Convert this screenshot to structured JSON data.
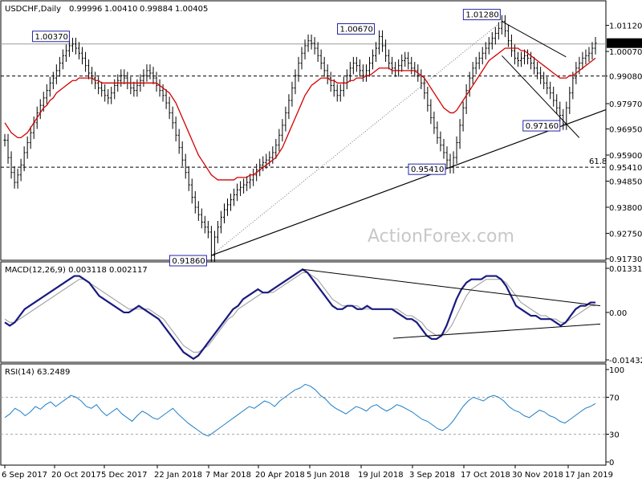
{
  "chart_data": [
    {
      "type": "candlestick",
      "title": "USDCHF,Daily",
      "ohlc_header": [
        "0.99996",
        "1.00410",
        "0.99884",
        "1.00405"
      ],
      "watermark": "ActionForex.com",
      "ylim": [
        0.9173,
        1.013
      ],
      "y_ticks": [
        "1.01120",
        "1.00070",
        "0.99080",
        "0.97970",
        "0.96950",
        "0.95900",
        "0.94850",
        "0.93800",
        "0.92750",
        "0.91730"
      ],
      "current_price": "1.00405",
      "x_ticks": [
        "6 Sep 2017",
        "20 Oct 2017",
        "5 Dec 2017",
        "22 Jan 2018",
        "7 Mar 2018",
        "20 Apr 2018",
        "5 Jun 2018",
        "19 Jul 2018",
        "3 Sep 2018",
        "17 Oct 2018",
        "30 Nov 2018",
        "17 Jan 2019"
      ],
      "annotations": [
        {
          "label": "1.00370",
          "value": 1.0037
        },
        {
          "label": "1.00670",
          "value": 1.0067
        },
        {
          "label": "1.01280",
          "value": 1.0128
        },
        {
          "label": "0.97160",
          "value": 0.9716
        },
        {
          "label": "0.95410",
          "value": 0.9541
        },
        {
          "label": "0.91860",
          "value": 0.9186
        },
        {
          "label": "0.99080",
          "value": 0.9908
        },
        {
          "label": "61.8",
          "value": 0.9541
        }
      ],
      "horizontal_levels": [
        0.9908,
        0.9541
      ],
      "close_series": [
        0.965,
        0.958,
        0.952,
        0.948,
        0.951,
        0.955,
        0.96,
        0.964,
        0.968,
        0.972,
        0.976,
        0.979,
        0.982,
        0.985,
        0.988,
        0.99,
        0.993,
        0.996,
        0.999,
        1.001,
        1.003,
        1.0037,
        1.002,
        1.0,
        0.998,
        0.995,
        0.992,
        0.99,
        0.988,
        0.986,
        0.985,
        0.983,
        0.982,
        0.984,
        0.987,
        0.989,
        0.991,
        0.99,
        0.988,
        0.986,
        0.985,
        0.987,
        0.989,
        0.991,
        0.993,
        0.992,
        0.99,
        0.987,
        0.985,
        0.983,
        0.98,
        0.976,
        0.972,
        0.967,
        0.962,
        0.957,
        0.952,
        0.947,
        0.942,
        0.938,
        0.935,
        0.932,
        0.93,
        0.928,
        0.9186,
        0.926,
        0.93,
        0.934,
        0.937,
        0.939,
        0.941,
        0.943,
        0.945,
        0.946,
        0.947,
        0.948,
        0.949,
        0.951,
        0.953,
        0.955,
        0.956,
        0.957,
        0.958,
        0.96,
        0.963,
        0.967,
        0.971,
        0.976,
        0.981,
        0.986,
        0.991,
        0.996,
        1.0,
        1.003,
        1.005,
        1.004,
        1.002,
        0.999,
        0.996,
        0.993,
        0.99,
        0.987,
        0.985,
        0.983,
        0.985,
        0.988,
        0.991,
        0.994,
        0.996,
        0.995,
        0.993,
        0.991,
        0.993,
        0.996,
        0.999,
        1.002,
        1.0067,
        1.003,
        0.999,
        0.996,
        0.994,
        0.993,
        0.995,
        0.997,
        0.998,
        0.996,
        0.994,
        0.993,
        0.991,
        0.988,
        0.984,
        0.979,
        0.974,
        0.97,
        0.966,
        0.963,
        0.96,
        0.957,
        0.9541,
        0.958,
        0.964,
        0.971,
        0.978,
        0.985,
        0.99,
        0.994,
        0.996,
        0.998,
        1.0,
        1.002,
        1.004,
        1.006,
        1.008,
        1.01,
        1.0128,
        1.009,
        1.005,
        1.001,
        0.998,
        0.997,
        0.998,
        0.999,
        0.998,
        0.996,
        0.994,
        0.992,
        0.99,
        0.988,
        0.986,
        0.984,
        0.981,
        0.978,
        0.975,
        0.9716,
        0.978,
        0.984,
        0.99,
        0.994,
        0.996,
        0.998,
        0.999,
        1.0,
        1.002,
        1.00405
      ],
      "ma_series": [
        0.972,
        0.97,
        0.968,
        0.967,
        0.966,
        0.966,
        0.967,
        0.968,
        0.97,
        0.972,
        0.974,
        0.976,
        0.978,
        0.979,
        0.981,
        0.982,
        0.984,
        0.985,
        0.986,
        0.987,
        0.988,
        0.989,
        0.989,
        0.99,
        0.99,
        0.99,
        0.99,
        0.99,
        0.989,
        0.989,
        0.988,
        0.988,
        0.988,
        0.988,
        0.988,
        0.988,
        0.988,
        0.988,
        0.988,
        0.988,
        0.988,
        0.988,
        0.988,
        0.988,
        0.988,
        0.988,
        0.988,
        0.988,
        0.987,
        0.986,
        0.985,
        0.984,
        0.982,
        0.98,
        0.977,
        0.974,
        0.971,
        0.968,
        0.965,
        0.962,
        0.959,
        0.957,
        0.955,
        0.953,
        0.951,
        0.95,
        0.949,
        0.949,
        0.949,
        0.949,
        0.949,
        0.949,
        0.95,
        0.95,
        0.95,
        0.95,
        0.951,
        0.951,
        0.952,
        0.953,
        0.954,
        0.955,
        0.956,
        0.957,
        0.958,
        0.96,
        0.962,
        0.965,
        0.968,
        0.971,
        0.974,
        0.977,
        0.98,
        0.983,
        0.985,
        0.987,
        0.988,
        0.989,
        0.99,
        0.99,
        0.99,
        0.989,
        0.989,
        0.988,
        0.988,
        0.988,
        0.988,
        0.989,
        0.989,
        0.99,
        0.99,
        0.99,
        0.991,
        0.991,
        0.992,
        0.993,
        0.994,
        0.994,
        0.994,
        0.994,
        0.993,
        0.993,
        0.993,
        0.993,
        0.993,
        0.993,
        0.993,
        0.993,
        0.992,
        0.991,
        0.99,
        0.988,
        0.986,
        0.984,
        0.982,
        0.98,
        0.978,
        0.977,
        0.976,
        0.976,
        0.977,
        0.979,
        0.981,
        0.983,
        0.985,
        0.987,
        0.989,
        0.991,
        0.993,
        0.995,
        0.997,
        0.998,
        0.999,
        1.0,
        1.001,
        1.002,
        1.002,
        1.002,
        1.002,
        1.002,
        1.001,
        1.001,
        1.0,
        0.999,
        0.998,
        0.997,
        0.996,
        0.995,
        0.994,
        0.993,
        0.992,
        0.991,
        0.99,
        0.99,
        0.99,
        0.991,
        0.991,
        0.992,
        0.993,
        0.994,
        0.995,
        0.996,
        0.997,
        0.998
      ]
    },
    {
      "type": "line",
      "title": "MACD(12,26,9) 0.003118 0.002117",
      "y_ticks": [
        "0.013319",
        "0.00",
        "-0.014323"
      ],
      "ylim": [
        -0.014323,
        0.013319
      ],
      "macd": [
        -0.003,
        -0.004,
        -0.003,
        -0.001,
        0.001,
        0.002,
        0.003,
        0.004,
        0.005,
        0.006,
        0.007,
        0.008,
        0.009,
        0.01,
        0.011,
        0.011,
        0.01,
        0.009,
        0.007,
        0.005,
        0.004,
        0.003,
        0.002,
        0.001,
        0.0,
        0.0,
        0.001,
        0.002,
        0.001,
        0.0,
        -0.001,
        -0.002,
        -0.004,
        -0.006,
        -0.008,
        -0.01,
        -0.012,
        -0.013,
        -0.014,
        -0.013,
        -0.011,
        -0.009,
        -0.007,
        -0.005,
        -0.003,
        -0.001,
        0.001,
        0.002,
        0.004,
        0.005,
        0.006,
        0.007,
        0.006,
        0.006,
        0.007,
        0.008,
        0.009,
        0.01,
        0.011,
        0.012,
        0.013,
        0.012,
        0.01,
        0.008,
        0.006,
        0.004,
        0.002,
        0.001,
        0.001,
        0.002,
        0.002,
        0.001,
        0.001,
        0.002,
        0.001,
        0.001,
        0.001,
        0.001,
        0.001,
        0.0,
        -0.001,
        -0.002,
        -0.002,
        -0.003,
        -0.005,
        -0.007,
        -0.008,
        -0.008,
        -0.007,
        -0.004,
        0.0,
        0.004,
        0.007,
        0.009,
        0.01,
        0.01,
        0.01,
        0.011,
        0.011,
        0.011,
        0.01,
        0.008,
        0.005,
        0.002,
        0.001,
        0.0,
        -0.001,
        -0.001,
        -0.002,
        -0.002,
        -0.002,
        -0.003,
        -0.004,
        -0.003,
        -0.001,
        0.001,
        0.002,
        0.002,
        0.003,
        0.003
      ],
      "signal": [
        -0.002,
        -0.003,
        -0.003,
        -0.002,
        -0.001,
        0.0,
        0.001,
        0.002,
        0.003,
        0.004,
        0.005,
        0.006,
        0.007,
        0.008,
        0.009,
        0.01,
        0.01,
        0.009,
        0.008,
        0.007,
        0.006,
        0.005,
        0.004,
        0.003,
        0.002,
        0.001,
        0.001,
        0.001,
        0.001,
        0.001,
        0.0,
        -0.001,
        -0.002,
        -0.004,
        -0.006,
        -0.008,
        -0.01,
        -0.011,
        -0.012,
        -0.012,
        -0.011,
        -0.01,
        -0.008,
        -0.006,
        -0.004,
        -0.002,
        -0.001,
        0.001,
        0.002,
        0.003,
        0.004,
        0.005,
        0.006,
        0.006,
        0.006,
        0.007,
        0.008,
        0.009,
        0.01,
        0.011,
        0.012,
        0.012,
        0.011,
        0.01,
        0.008,
        0.006,
        0.004,
        0.003,
        0.002,
        0.002,
        0.002,
        0.002,
        0.001,
        0.001,
        0.001,
        0.001,
        0.001,
        0.001,
        0.001,
        0.001,
        0.0,
        -0.001,
        -0.001,
        -0.002,
        -0.003,
        -0.005,
        -0.006,
        -0.007,
        -0.007,
        -0.006,
        -0.004,
        -0.001,
        0.002,
        0.005,
        0.007,
        0.008,
        0.009,
        0.01,
        0.01,
        0.01,
        0.01,
        0.009,
        0.007,
        0.005,
        0.003,
        0.002,
        0.001,
        0.0,
        -0.001,
        -0.001,
        -0.002,
        -0.002,
        -0.003,
        -0.003,
        -0.002,
        -0.001,
        0.0,
        0.001,
        0.002,
        0.002
      ]
    },
    {
      "type": "line",
      "title": "RSI(14) 63.2489",
      "y_ticks": [
        "100",
        "70",
        "30",
        "0"
      ],
      "ylim": [
        0,
        100
      ],
      "levels": [
        70,
        30
      ],
      "rsi": [
        48,
        52,
        58,
        55,
        50,
        54,
        60,
        57,
        62,
        65,
        60,
        64,
        68,
        72,
        70,
        66,
        60,
        58,
        62,
        55,
        50,
        54,
        58,
        52,
        48,
        44,
        50,
        55,
        52,
        48,
        46,
        50,
        54,
        58,
        52,
        47,
        42,
        38,
        34,
        30,
        28,
        32,
        36,
        40,
        44,
        48,
        52,
        56,
        60,
        58,
        62,
        66,
        64,
        60,
        66,
        70,
        74,
        78,
        80,
        84,
        82,
        78,
        72,
        68,
        62,
        58,
        55,
        52,
        56,
        60,
        58,
        55,
        60,
        62,
        58,
        55,
        58,
        62,
        60,
        57,
        54,
        50,
        46,
        44,
        40,
        36,
        34,
        38,
        44,
        52,
        60,
        66,
        70,
        68,
        66,
        70,
        72,
        70,
        66,
        60,
        56,
        54,
        50,
        48,
        52,
        56,
        54,
        50,
        48,
        44,
        42,
        46,
        50,
        54,
        58,
        60,
        63.2489
      ]
    }
  ]
}
